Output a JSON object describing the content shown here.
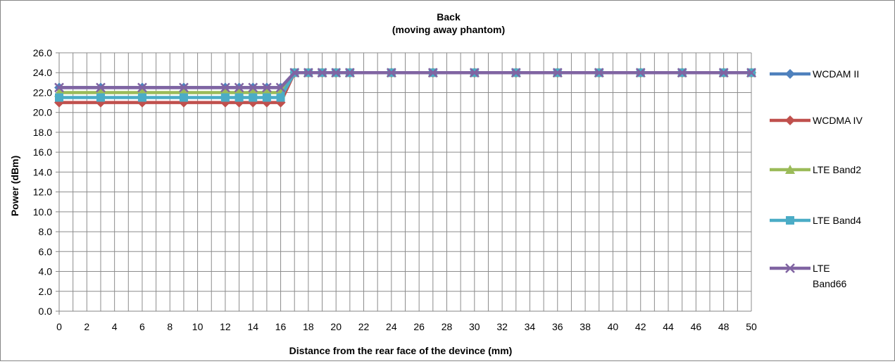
{
  "chart_data": {
    "type": "line",
    "title": "Back",
    "subtitle": "(moving away phantom)",
    "xlabel": "Distance from the rear face of the devince (mm)",
    "ylabel": "Power (dBm)",
    "xlim": [
      0,
      50
    ],
    "ylim": [
      0,
      26
    ],
    "x_ticks": [
      "0",
      "2",
      "4",
      "6",
      "8",
      "10",
      "12",
      "14",
      "16",
      "18",
      "20",
      "22",
      "24",
      "26",
      "28",
      "30",
      "32",
      "34",
      "36",
      "38",
      "40",
      "42",
      "44",
      "46",
      "48",
      "50"
    ],
    "y_ticks": [
      "0.0",
      "2.0",
      "4.0",
      "6.0",
      "8.0",
      "10.0",
      "12.0",
      "14.0",
      "16.0",
      "18.0",
      "20.0",
      "22.0",
      "24.0",
      "26.0"
    ],
    "grid": true,
    "legend_position": "right",
    "x": [
      0,
      3,
      6,
      9,
      12,
      13,
      14,
      15,
      16,
      17,
      18,
      19,
      20,
      21,
      24,
      27,
      30,
      33,
      36,
      39,
      42,
      45,
      48,
      50
    ],
    "series": [
      {
        "name": "WCDAM II",
        "color": "#4F81BD",
        "marker": "diamond",
        "values": [
          22.5,
          22.5,
          22.5,
          22.5,
          22.5,
          22.5,
          22.5,
          22.5,
          22.5,
          24,
          24,
          24,
          24,
          24,
          24,
          24,
          24,
          24,
          24,
          24,
          24,
          24,
          24,
          24
        ]
      },
      {
        "name": "WCDMA IV",
        "color": "#C0504D",
        "marker": "diamond",
        "values": [
          21,
          21,
          21,
          21,
          21,
          21,
          21,
          21,
          21,
          24,
          24,
          24,
          24,
          24,
          24,
          24,
          24,
          24,
          24,
          24,
          24,
          24,
          24,
          24
        ]
      },
      {
        "name": "LTE Band2",
        "color": "#9BBB59",
        "marker": "triangle",
        "values": [
          22,
          22,
          22,
          22,
          22,
          22,
          22,
          22,
          22,
          24,
          24,
          24,
          24,
          24,
          24,
          24,
          24,
          24,
          24,
          24,
          24,
          24,
          24,
          24
        ]
      },
      {
        "name": "LTE Band4",
        "color": "#4BACC6",
        "marker": "square",
        "values": [
          21.5,
          21.5,
          21.5,
          21.5,
          21.5,
          21.5,
          21.5,
          21.5,
          21.5,
          24,
          24,
          24,
          24,
          24,
          24,
          24,
          24,
          24,
          24,
          24,
          24,
          24,
          24,
          24
        ]
      },
      {
        "name": "LTE Band66",
        "color": "#8064A2",
        "marker": "x",
        "values": [
          22.5,
          22.5,
          22.5,
          22.5,
          22.5,
          22.5,
          22.5,
          22.5,
          22.5,
          24,
          24,
          24,
          24,
          24,
          24,
          24,
          24,
          24,
          24,
          24,
          24,
          24,
          24,
          24
        ]
      }
    ],
    "legend_lines": [
      [
        "WCDAM II"
      ],
      [
        "WCDMA IV"
      ],
      [
        "LTE Band2"
      ],
      [
        "LTE Band4"
      ],
      [
        "LTE",
        "Band66"
      ]
    ]
  }
}
